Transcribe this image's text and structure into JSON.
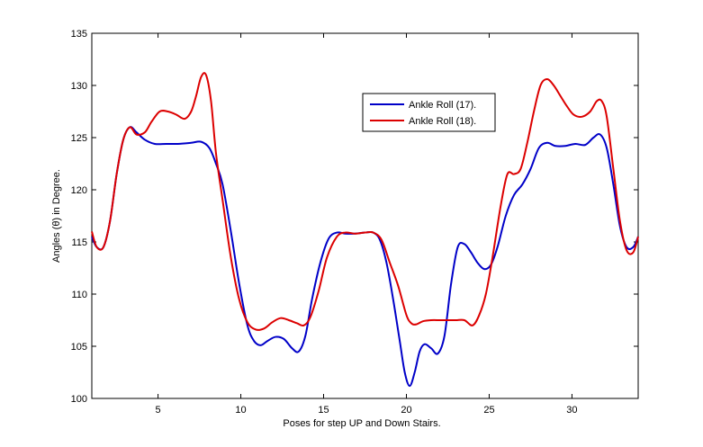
{
  "chart_data": {
    "type": "line",
    "title": "",
    "xlabel": "Poses for step UP and Down Stairs.",
    "ylabel": "Angles (θ) in Degree.",
    "xlim": [
      1,
      34
    ],
    "ylim": [
      100,
      135
    ],
    "xticks": [
      5,
      10,
      15,
      20,
      25,
      30
    ],
    "yticks": [
      100,
      105,
      110,
      115,
      120,
      125,
      130,
      135
    ],
    "grid": false,
    "legend_position": "top-right",
    "series": [
      {
        "name": "Ankle Roll (17).",
        "color": "#0000c8",
        "x": [
          1,
          1.3,
          1.7,
          2.1,
          2.5,
          2.9,
          3.3,
          3.7,
          4.2,
          4.8,
          5.5,
          6.2,
          7,
          7.6,
          8.1,
          8.5,
          8.9,
          9.4,
          9.9,
          10.4,
          10.8,
          11.2,
          11.6,
          12.1,
          12.6,
          13.1,
          13.5,
          13.9,
          14.3,
          14.8,
          15.3,
          15.8,
          16.3,
          16.9,
          17.5,
          18,
          18.4,
          18.8,
          19.2,
          19.6,
          19.9,
          20.2,
          20.5,
          20.8,
          21.1,
          21.5,
          21.9,
          22.3,
          22.7,
          23.1,
          23.5,
          23.9,
          24.3,
          24.7,
          25.1,
          25.5,
          26,
          26.5,
          27,
          27.5,
          28,
          28.5,
          29,
          29.6,
          30.2,
          30.8,
          31.3,
          31.7,
          32.1,
          32.5,
          32.9,
          33.3,
          33.7,
          34
        ],
        "y": [
          115.5,
          114.5,
          114.5,
          117,
          121.5,
          124.8,
          126,
          125.5,
          124.8,
          124.4,
          124.4,
          124.4,
          124.5,
          124.6,
          124,
          122.5,
          120.5,
          116,
          111,
          107,
          105.5,
          105.1,
          105.5,
          105.9,
          105.7,
          104.8,
          104.5,
          106,
          109.5,
          113,
          115.3,
          115.9,
          115.8,
          115.8,
          115.9,
          115.9,
          115.2,
          113,
          109.5,
          105.5,
          102.5,
          101.2,
          102.5,
          104.5,
          105.2,
          104.8,
          104.3,
          106,
          111,
          114.5,
          114.8,
          114,
          113,
          112.4,
          112.8,
          114.5,
          117.5,
          119.5,
          120.5,
          122,
          124,
          124.5,
          124.2,
          124.2,
          124.4,
          124.3,
          125,
          125.3,
          124,
          120.5,
          116.5,
          114.5,
          114.5,
          115.5
        ]
      },
      {
        "name": "Ankle Roll (18).",
        "color": "#dc0000",
        "x": [
          1,
          1.3,
          1.7,
          2.1,
          2.5,
          2.9,
          3.3,
          3.7,
          4.2,
          4.6,
          5.1,
          5.6,
          6.1,
          6.6,
          7,
          7.3,
          7.6,
          7.9,
          8.2,
          8.5,
          8.9,
          9.4,
          9.9,
          10.4,
          10.9,
          11.4,
          11.9,
          12.4,
          12.9,
          13.4,
          13.8,
          14.2,
          14.7,
          15.2,
          15.8,
          16.3,
          16.9,
          17.5,
          18,
          18.5,
          19,
          19.5,
          20,
          20.3,
          20.6,
          21,
          21.5,
          22,
          22.5,
          23,
          23.5,
          24,
          24.4,
          24.8,
          25.2,
          25.7,
          26.1,
          26.5,
          26.9,
          27.3,
          27.7,
          28.1,
          28.5,
          28.9,
          29.3,
          29.7,
          30.1,
          30.6,
          31.1,
          31.5,
          31.8,
          32.1,
          32.5,
          32.9,
          33.3,
          33.7,
          34
        ],
        "y": [
          116,
          114.5,
          114.5,
          117,
          121.5,
          124.8,
          126,
          125.3,
          125.5,
          126.5,
          127.5,
          127.5,
          127.2,
          126.8,
          127.5,
          129,
          130.8,
          131,
          128.5,
          123.5,
          119,
          113.5,
          109.5,
          107.3,
          106.6,
          106.7,
          107.3,
          107.7,
          107.5,
          107.2,
          107,
          107.8,
          110.3,
          113.5,
          115.5,
          115.9,
          115.8,
          115.9,
          115.9,
          115.2,
          113,
          110.8,
          108,
          107.2,
          107.1,
          107.4,
          107.5,
          107.5,
          107.5,
          107.5,
          107.5,
          107,
          108,
          110,
          113.5,
          118.5,
          121.5,
          121.5,
          122,
          124.5,
          127.5,
          130,
          130.6,
          130,
          129,
          128,
          127.2,
          127,
          127.5,
          128.5,
          128.5,
          127,
          122,
          117,
          114.2,
          114,
          115.5
        ]
      }
    ]
  }
}
